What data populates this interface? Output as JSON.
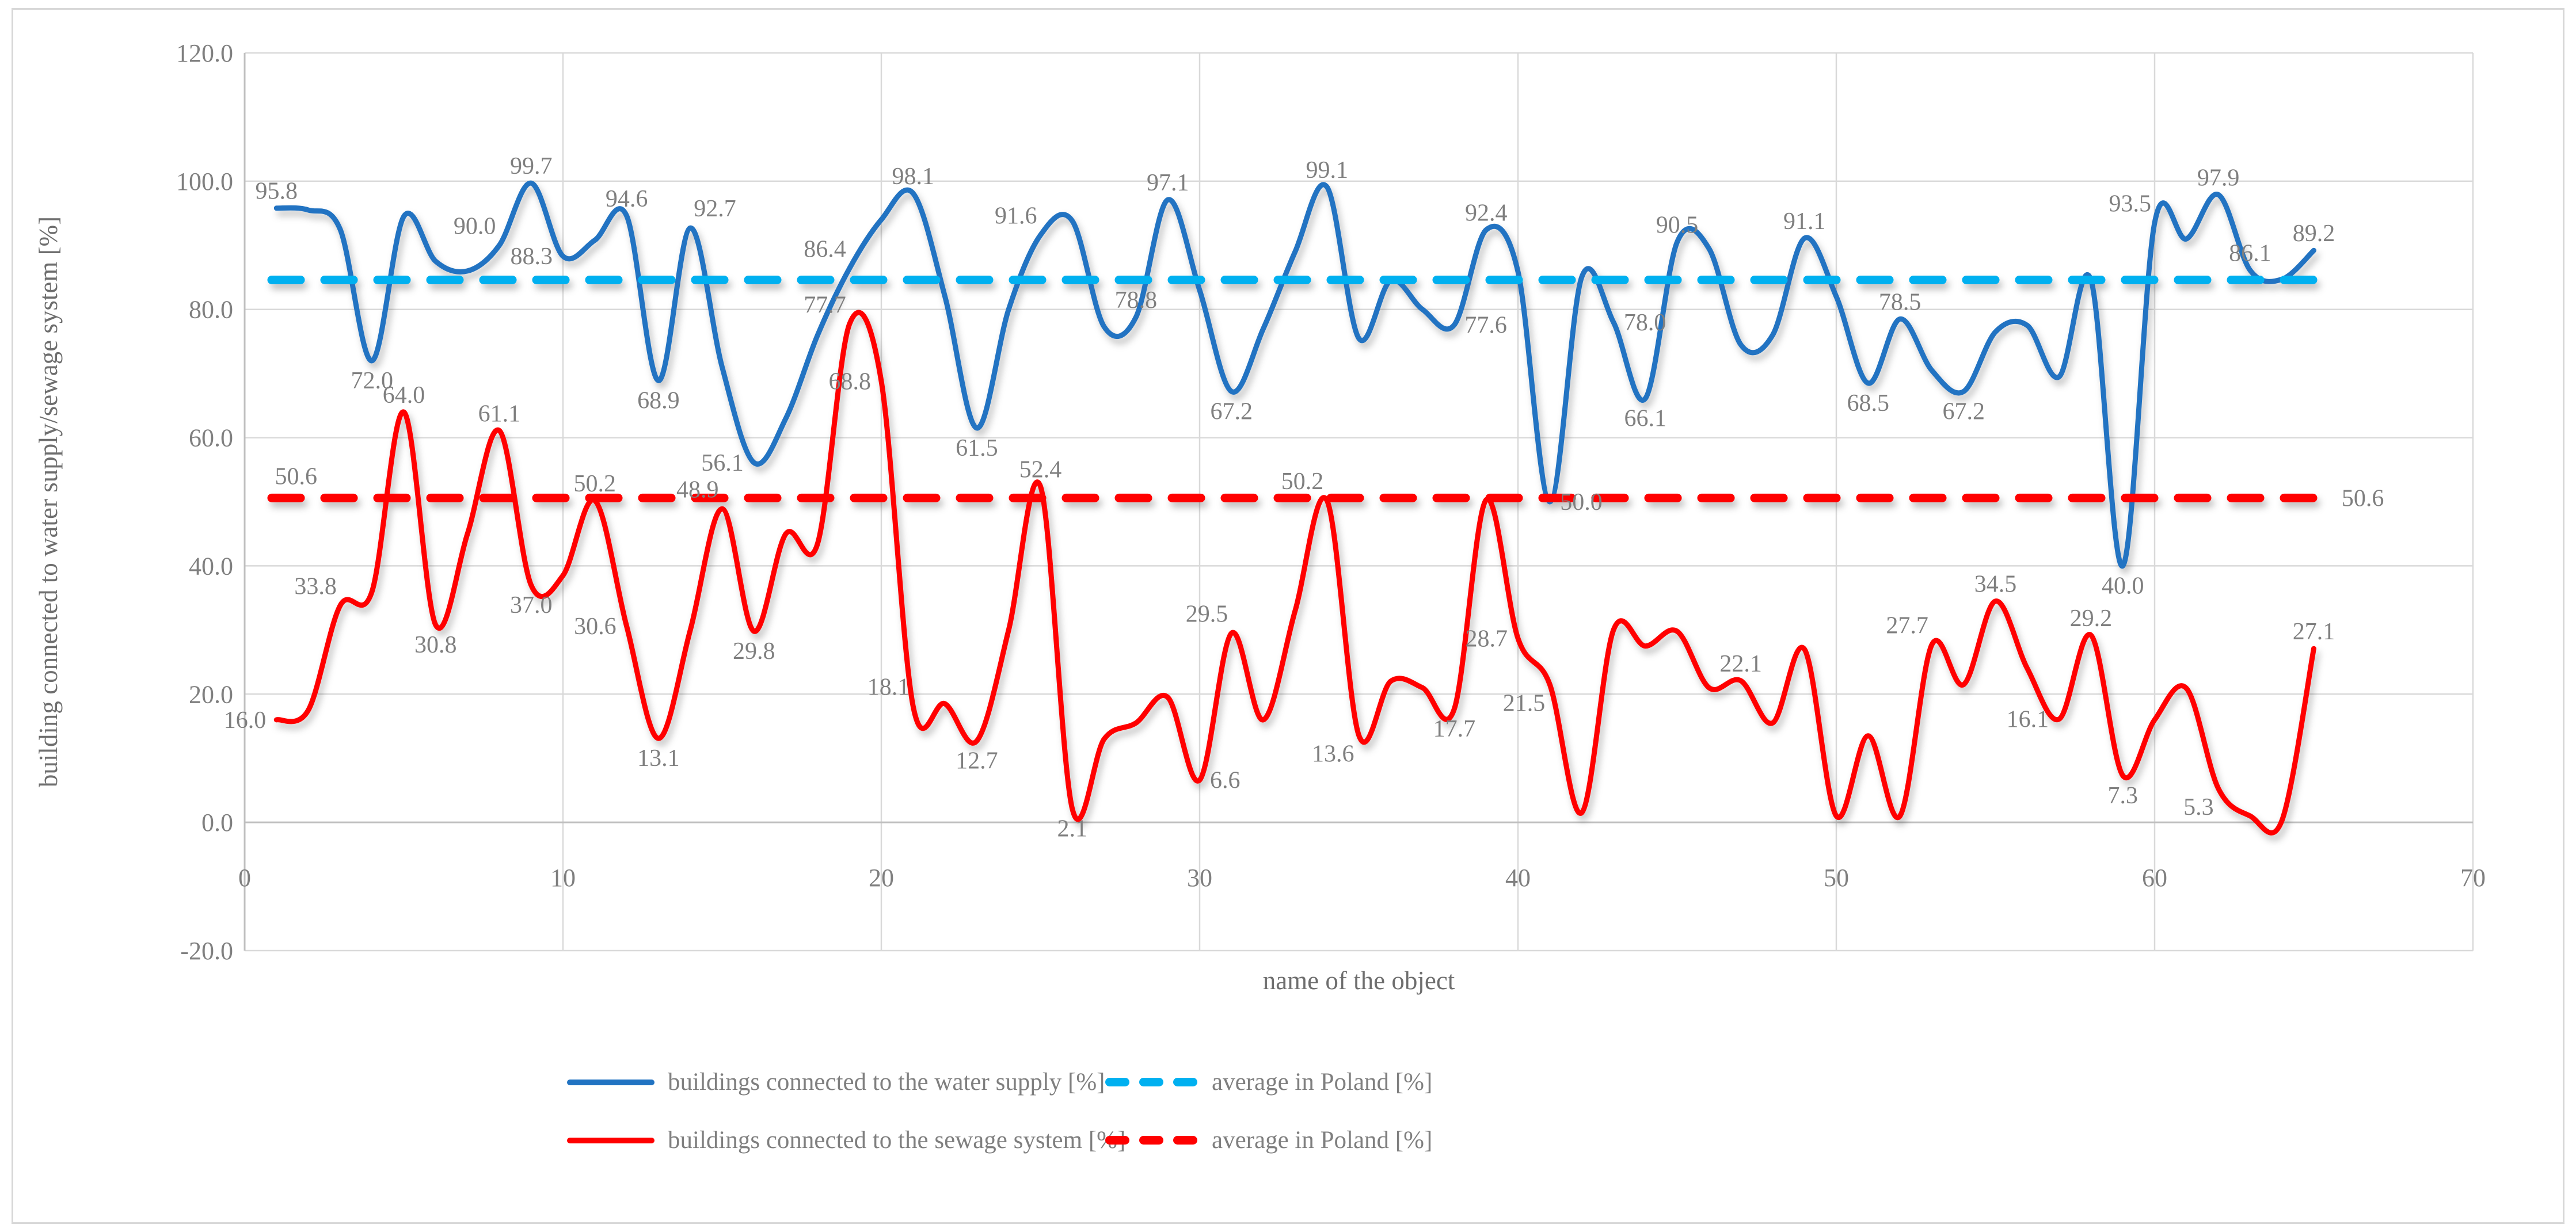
{
  "chart_data": {
    "type": "line",
    "title": "",
    "xlabel": "name of the object",
    "ylabel": "building connected to water supply/sewage system [%]",
    "xlim": [
      0,
      70
    ],
    "ylim": [
      -20,
      120
    ],
    "x_ticks": [
      "0",
      "10",
      "20",
      "30",
      "40",
      "50",
      "60",
      "70"
    ],
    "x_tick_values": [
      0,
      10,
      20,
      30,
      40,
      50,
      60,
      70
    ],
    "y_ticks": [
      "120.0",
      "100.0",
      "80.0",
      "60.0",
      "40.0",
      "20.0",
      "0.0",
      "-20.0"
    ],
    "y_tick_values": [
      120,
      100,
      80,
      60,
      40,
      20,
      0,
      -20
    ],
    "grid": true,
    "legend_position": "bottom",
    "colors": {
      "water_line": "#2173C2",
      "sewage_line": "#FF0000",
      "water_average": "#00B0F0",
      "sewage_average": "#FF0000",
      "label_text": "#7f7f7f",
      "gridline": "#d9d9d9",
      "axis_line": "#bfbfbf"
    },
    "series": [
      {
        "name": "buildings connected to the water supply [%]",
        "kind": "smooth",
        "color": "#2173C2",
        "points": [
          [
            1,
            95.8,
            "95.8",
            "above"
          ],
          [
            2,
            95.5
          ],
          [
            3,
            92.5
          ],
          [
            4,
            72.0,
            "72.0",
            "below"
          ],
          [
            5,
            94.5
          ],
          [
            6,
            87.5
          ],
          [
            7,
            86.0
          ],
          [
            8,
            90.0,
            "90.0",
            "above-left"
          ],
          [
            9,
            99.7,
            "99.7",
            "above"
          ],
          [
            10,
            88.3,
            "88.3",
            "left"
          ],
          [
            11,
            90.8
          ],
          [
            12,
            94.6,
            "94.6",
            "above"
          ],
          [
            13,
            68.9,
            "68.9",
            "below"
          ],
          [
            14,
            92.7,
            "92.7",
            "above-right"
          ],
          [
            15,
            71.0
          ],
          [
            16,
            56.1,
            "56.1",
            "left"
          ],
          [
            17,
            63.0
          ],
          [
            18,
            76.0
          ],
          [
            19,
            86.4,
            "86.4",
            "above-left"
          ],
          [
            20,
            94.0
          ],
          [
            21,
            98.1,
            "98.1",
            "above"
          ],
          [
            22,
            82.0
          ],
          [
            23,
            61.5,
            "61.5",
            "below"
          ],
          [
            24,
            80.0
          ],
          [
            25,
            91.6,
            "91.6",
            "above-left"
          ],
          [
            26,
            93.8
          ],
          [
            27,
            77.3
          ],
          [
            28,
            78.8,
            "78.8",
            "above"
          ],
          [
            29,
            97.1,
            "97.1",
            "above"
          ],
          [
            30,
            83.0
          ],
          [
            31,
            67.2,
            "67.2",
            "below"
          ],
          [
            32,
            77.0
          ],
          [
            33,
            89.0
          ],
          [
            34,
            99.1,
            "99.1",
            "above"
          ],
          [
            35,
            75.5
          ],
          [
            36,
            84.5
          ],
          [
            37,
            80.0
          ],
          [
            38,
            77.6,
            "77.6",
            "right"
          ],
          [
            39,
            92.4,
            "92.4",
            "above"
          ],
          [
            40,
            85.9
          ],
          [
            41,
            50.0,
            "50.0",
            "right"
          ],
          [
            42,
            85.0
          ],
          [
            43,
            78.0,
            "78.0",
            "right"
          ],
          [
            44,
            66.1,
            "66.1",
            "below"
          ],
          [
            45,
            90.5,
            "90.5",
            "above"
          ],
          [
            46,
            89.5
          ],
          [
            47,
            74.5
          ],
          [
            48,
            76.0
          ],
          [
            49,
            91.1,
            "91.1",
            "above"
          ],
          [
            50,
            82.0
          ],
          [
            51,
            68.5,
            "68.5",
            "below"
          ],
          [
            52,
            78.5,
            "78.5",
            "above"
          ],
          [
            53,
            70.5
          ],
          [
            54,
            67.2,
            "67.2",
            "below"
          ],
          [
            55,
            76.5
          ],
          [
            56,
            77.5
          ],
          [
            57,
            69.5
          ],
          [
            58,
            84.6
          ],
          [
            59,
            40.0,
            "40.0",
            "below"
          ],
          [
            60,
            93.5,
            "93.5",
            "above-left"
          ],
          [
            61,
            91.0
          ],
          [
            62,
            97.9,
            "97.9",
            "above"
          ],
          [
            63,
            86.1,
            "86.1",
            "above"
          ],
          [
            64,
            84.7
          ],
          [
            65,
            89.2,
            "89.2",
            "above"
          ]
        ]
      },
      {
        "name": "buildings connected to the sewage system [%]",
        "kind": "smooth",
        "color": "#FF0000",
        "points": [
          [
            1,
            16.0,
            "16.0",
            "left"
          ],
          [
            2,
            17.5
          ],
          [
            3,
            33.8,
            "33.8",
            "above-left"
          ],
          [
            4,
            36.0
          ],
          [
            5,
            64.0,
            "64.0",
            "above"
          ],
          [
            6,
            30.8,
            "30.8",
            "below"
          ],
          [
            7,
            45.0
          ],
          [
            8,
            61.1,
            "61.1",
            "above"
          ],
          [
            9,
            37.0,
            "37.0",
            "below"
          ],
          [
            10,
            38.5
          ],
          [
            11,
            50.2,
            "50.2",
            "above"
          ],
          [
            12,
            30.6,
            "30.6",
            "left"
          ],
          [
            13,
            13.1,
            "13.1",
            "below"
          ],
          [
            14,
            30.0
          ],
          [
            15,
            48.9,
            "48.9",
            "above-left"
          ],
          [
            16,
            29.8,
            "29.8",
            "below"
          ],
          [
            17,
            45.0
          ],
          [
            18,
            43.5
          ],
          [
            19,
            77.7,
            "77.7",
            "above-left"
          ],
          [
            20,
            68.8,
            "68.8",
            "left"
          ],
          [
            21,
            18.1,
            "18.1",
            "above-left"
          ],
          [
            22,
            18.5
          ],
          [
            23,
            12.7,
            "12.7",
            "below"
          ],
          [
            24,
            30.0
          ],
          [
            25,
            52.4,
            "52.4",
            "above"
          ],
          [
            26,
            2.1,
            "2.1",
            "below"
          ],
          [
            27,
            13.0
          ],
          [
            28,
            15.5
          ],
          [
            29,
            19.5
          ],
          [
            30,
            6.6,
            "6.6",
            "right"
          ],
          [
            31,
            29.5,
            "29.5",
            "above-left"
          ],
          [
            32,
            16.0
          ],
          [
            33,
            33.0
          ],
          [
            34,
            50.2,
            "50.2",
            "above-left"
          ],
          [
            35,
            13.6,
            "13.6",
            "below-left"
          ],
          [
            36,
            22.0
          ],
          [
            37,
            21.0
          ],
          [
            38,
            17.7,
            "17.7",
            "below"
          ],
          [
            39,
            50.3
          ],
          [
            40,
            28.7,
            "28.7",
            "left"
          ],
          [
            41,
            21.5,
            "21.5",
            "below-left"
          ],
          [
            42,
            1.5
          ],
          [
            43,
            30.0
          ],
          [
            44,
            27.5
          ],
          [
            45,
            29.8
          ],
          [
            46,
            21.0
          ],
          [
            47,
            22.1,
            "22.1",
            "above"
          ],
          [
            48,
            15.5
          ],
          [
            49,
            27.0
          ],
          [
            50,
            1.0
          ],
          [
            51,
            13.5
          ],
          [
            52,
            1.0
          ],
          [
            53,
            27.7,
            "27.7",
            "above-left"
          ],
          [
            54,
            21.5
          ],
          [
            55,
            34.5,
            "34.5",
            "above"
          ],
          [
            56,
            24.0
          ],
          [
            57,
            16.1,
            "16.1",
            "left"
          ],
          [
            58,
            29.2,
            "29.2",
            "above"
          ],
          [
            59,
            7.3,
            "7.3",
            "below"
          ],
          [
            60,
            16.0
          ],
          [
            61,
            20.9
          ],
          [
            62,
            5.3,
            "5.3",
            "below-left"
          ],
          [
            63,
            1.0
          ],
          [
            64,
            0.3
          ],
          [
            65,
            27.1,
            "27.1",
            "above"
          ]
        ]
      },
      {
        "name": "average in Poland [%]",
        "kind": "dashed-constant",
        "color": "#00B0F0",
        "value": 84.6,
        "x_start": 0.85,
        "x_end": 65.35,
        "line_labels": []
      },
      {
        "name": "average in Poland [%]",
        "kind": "dashed-constant",
        "color": "#FF0000",
        "value": 50.6,
        "x_start": 0.85,
        "x_end": 65.35,
        "line_labels": [
          {
            "text": "50.6",
            "x": 0.95,
            "pos": "above-start"
          },
          {
            "text": "50.6",
            "x": 65.55,
            "pos": "right"
          }
        ]
      }
    ],
    "legend": {
      "row1_solid": "buildings connected to the water supply [%]",
      "row1_dashed": "average in Poland [%]",
      "row2_solid": "buildings connected to the sewage system [%]",
      "row2_dashed": "average in Poland [%]"
    }
  }
}
